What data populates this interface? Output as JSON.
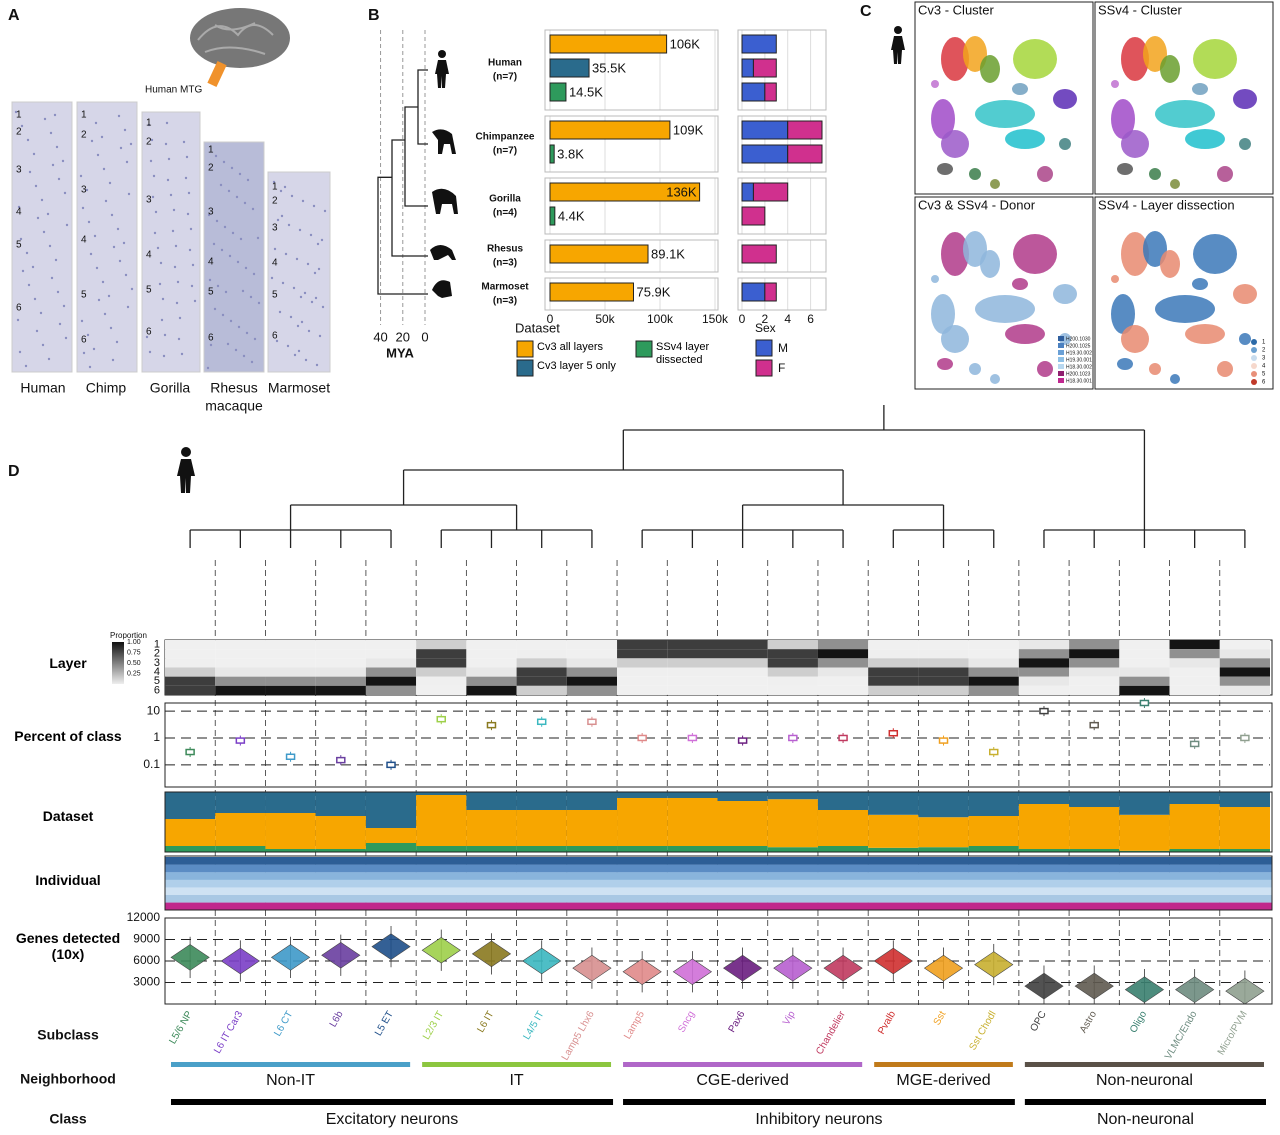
{
  "panel_labels": [
    "A",
    "B",
    "C",
    "D"
  ],
  "panel_a": {
    "inset_label": "Human MTG",
    "species": [
      {
        "name_lines": [
          "Human"
        ],
        "layers": [
          1,
          2,
          3,
          4,
          5,
          6
        ]
      },
      {
        "name_lines": [
          "Chimp"
        ],
        "layers": [
          1,
          2,
          3,
          4,
          5,
          6
        ]
      },
      {
        "name_lines": [
          "Gorilla"
        ],
        "layers": [
          1,
          2,
          3,
          4,
          5,
          6
        ]
      },
      {
        "name_lines": [
          "Rhesus",
          "macaque"
        ],
        "layers": [
          1,
          2,
          3,
          4,
          5,
          6
        ]
      },
      {
        "name_lines": [
          "Marmoset"
        ],
        "layers": [
          1,
          2,
          3,
          4,
          5,
          6
        ]
      }
    ]
  },
  "panel_b": {
    "mya_label": "MYA",
    "mya_xlim": [
      45,
      0
    ],
    "mya_ticks": [
      40,
      20,
      0
    ],
    "dataset_title": "Dataset",
    "sex_title": "Sex"
  },
  "chart_data": [
    {
      "type": "bar",
      "categories": [
        "Human",
        "Chimpanzee",
        "Gorilla",
        "Rhesus",
        "Marmoset"
      ],
      "category_notes": [
        "(n=7)",
        "(n=7)",
        "(n=4)",
        "(n=3)",
        "(n=3)"
      ],
      "series": [
        {
          "name": "Cv3 all layers",
          "color": "#f7a600",
          "values": [
            106000,
            109000,
            136000,
            89100,
            75900
          ],
          "value_labels": [
            "106K",
            "109K",
            "136K",
            "89.1K",
            "75.9K"
          ]
        },
        {
          "name": "Cv3 layer 5 only",
          "color": "#2a6b8c",
          "values": [
            35500,
            null,
            null,
            null,
            null
          ],
          "value_labels": [
            "35.5K",
            null,
            null,
            null,
            null
          ]
        },
        {
          "name": "SSv4 layer dissected",
          "color": "#2e9a5c",
          "values": [
            14500,
            3800,
            4400,
            null,
            null
          ],
          "value_labels": [
            "14.5K",
            "3.8K",
            "4.4K",
            null,
            null
          ]
        }
      ],
      "xlim": [
        0,
        150000
      ],
      "xticks": [
        0,
        {
          "value": 50000,
          "label": "50k"
        },
        {
          "value": 100000,
          "label": "100k"
        },
        {
          "value": 150000,
          "label": "150k"
        }
      ],
      "grid": true
    },
    {
      "type": "stacked_bar",
      "series": [
        {
          "name": "M",
          "color": "#3b5fd0",
          "values": [
            [
              3,
              1,
              2
            ],
            [
              4,
              null,
              4
            ],
            [
              1,
              null,
              0
            ],
            [
              0,
              null,
              null
            ],
            [
              2,
              null,
              null
            ]
          ]
        },
        {
          "name": "F",
          "color": "#d0308e",
          "values": [
            [
              0,
              2,
              1
            ],
            [
              3,
              null,
              3
            ],
            [
              3,
              null,
              2
            ],
            [
              3,
              null,
              null
            ],
            [
              1,
              null,
              null
            ]
          ]
        }
      ],
      "xlim": [
        0,
        7
      ],
      "xticks": [
        0,
        2,
        4,
        6
      ],
      "grid": true
    },
    {
      "type": "heatmap",
      "values": [
        5.5,
        6,
        6,
        6,
        5,
        2.5,
        6,
        4.5,
        5,
        1.5,
        1.5,
        1.5,
        2.5,
        2,
        4.5,
        4.5,
        5,
        3,
        2,
        6,
        1,
        4
      ],
      "ylim": [
        0.5,
        6.5
      ],
      "yticks": [
        1,
        2,
        3,
        4,
        5,
        6
      ],
      "legend_title": "Proportion",
      "legend_ticks": [
        {
          "value": 0.25,
          "label": "0.25"
        },
        {
          "value": 0.5,
          "label": "0.50"
        },
        {
          "value": 0.75,
          "label": "0.75"
        },
        {
          "value": 1,
          "label": "1.00"
        }
      ]
    },
    {
      "type": "scatter",
      "values": [
        0.3,
        0.8,
        0.2,
        0.15,
        0.1,
        5,
        3,
        4,
        4,
        1,
        1,
        0.8,
        1,
        1,
        1.5,
        0.8,
        0.3,
        10,
        3,
        20,
        0.6,
        1
      ],
      "ylim": [
        0.015,
        20
      ],
      "yticks": [
        0.1,
        1,
        10
      ],
      "log_scale": true,
      "grid": true
    },
    {
      "type": "stacked_bar",
      "series": [
        {
          "color": "#f7a600",
          "values": [
            0.45,
            0.55,
            0.6,
            0.55,
            0.25,
            0.85,
            0.6,
            0.6,
            0.6,
            0.8,
            0.8,
            0.75,
            0.8,
            0.6,
            0.55,
            0.5,
            0.5,
            0.75,
            0.7,
            0.6,
            0.75,
            0.7
          ]
        },
        {
          "color": "#2a6b8c",
          "values": [
            0.45,
            0.35,
            0.35,
            0.4,
            0.6,
            0.05,
            0.3,
            0.3,
            0.3,
            0.1,
            0.1,
            0.15,
            0.12,
            0.3,
            0.38,
            0.42,
            0.4,
            0.2,
            0.25,
            0.38,
            0.2,
            0.25
          ]
        },
        {
          "color": "#2e9a5c",
          "values": [
            0.1,
            0.1,
            0.05,
            0.05,
            0.15,
            0.1,
            0.1,
            0.1,
            0.1,
            0.1,
            0.1,
            0.1,
            0.08,
            0.1,
            0.07,
            0.08,
            0.1,
            0.05,
            0.05,
            0.02,
            0.05,
            0.05
          ]
        }
      ],
      "ylim": [
        0,
        1
      ]
    },
    {
      "type": "violin",
      "values": [
        6500,
        6000,
        6500,
        6800,
        8000,
        7500,
        7000,
        6000,
        5000,
        4500,
        4500,
        5000,
        5000,
        5000,
        6000,
        5000,
        5500,
        2500,
        2500,
        2000,
        2000,
        1800
      ],
      "ylim": [
        0,
        12000
      ],
      "yticks": [
        3000,
        6000,
        9000,
        12000
      ],
      "grid": true
    }
  ],
  "panel_c": {
    "titles": [
      "Cv3 - Cluster",
      "SSv4 - Cluster",
      "Cv3 & SSv4 - Donor",
      "SSv4 - Layer dissection"
    ],
    "donors": [
      "H200.1030",
      "H200.1025",
      "H19.30.002",
      "H19.30.001",
      "H18.30.002",
      "H200.1023",
      "H18.30.001"
    ],
    "layers": [
      1,
      2,
      3,
      4,
      5,
      6
    ]
  },
  "panel_d": {
    "row_labels": [
      "Layer",
      "Percent of class",
      "Dataset",
      "Individual",
      "Genes detected (10x)"
    ],
    "subclass_title": "Subclass",
    "subclasses": [
      "L5/6 NP",
      "L6 IT Car3",
      "L6 CT",
      "L6b",
      "L5 ET",
      "L2/3 IT",
      "L6 IT",
      "L4/5 IT",
      "Lamp5 Lhx6",
      "Lamp5",
      "Sncg",
      "Pax6",
      "Vip",
      "Chandelier",
      "Pvalb",
      "Sst",
      "Sst Chodl",
      "OPC",
      "Astro",
      "Oligo",
      "VLMC/Endo",
      "Micro/PVM"
    ],
    "subclass_colors": [
      "#3d8a5a",
      "#7b3fc7",
      "#3f9ac9",
      "#6a3fa0",
      "#1f4f8a",
      "#9ed04a",
      "#8a7a20",
      "#3bb8c0",
      "#d89090",
      "#e08a8a",
      "#d070d8",
      "#6b1f80",
      "#b860d0",
      "#c03a60",
      "#d03030",
      "#f0a020",
      "#c8b030",
      "#404040",
      "#605a50",
      "#3a8070",
      "#6e8c80",
      "#90a090"
    ],
    "neighborhood_title": "Neighborhood",
    "neighborhoods": [
      {
        "label": "Non-IT",
        "span": 5,
        "color": "#4aa0c8"
      },
      {
        "label": "IT",
        "span": 4,
        "color": "#8cc63f"
      },
      {
        "label": "CGE-derived",
        "span": 5,
        "color": "#b067c8"
      },
      {
        "label": "MGE-derived",
        "span": 3,
        "color": "#c07a1a"
      },
      {
        "label": "Non-neuronal",
        "span": 5,
        "color": "#5a5148"
      }
    ],
    "class_title": "Class",
    "classes": [
      {
        "label": "Excitatory neurons",
        "span": 9
      },
      {
        "label": "Inhibitory neurons",
        "span": 8
      },
      {
        "label": "Non-neuronal",
        "span": 5
      }
    ]
  }
}
